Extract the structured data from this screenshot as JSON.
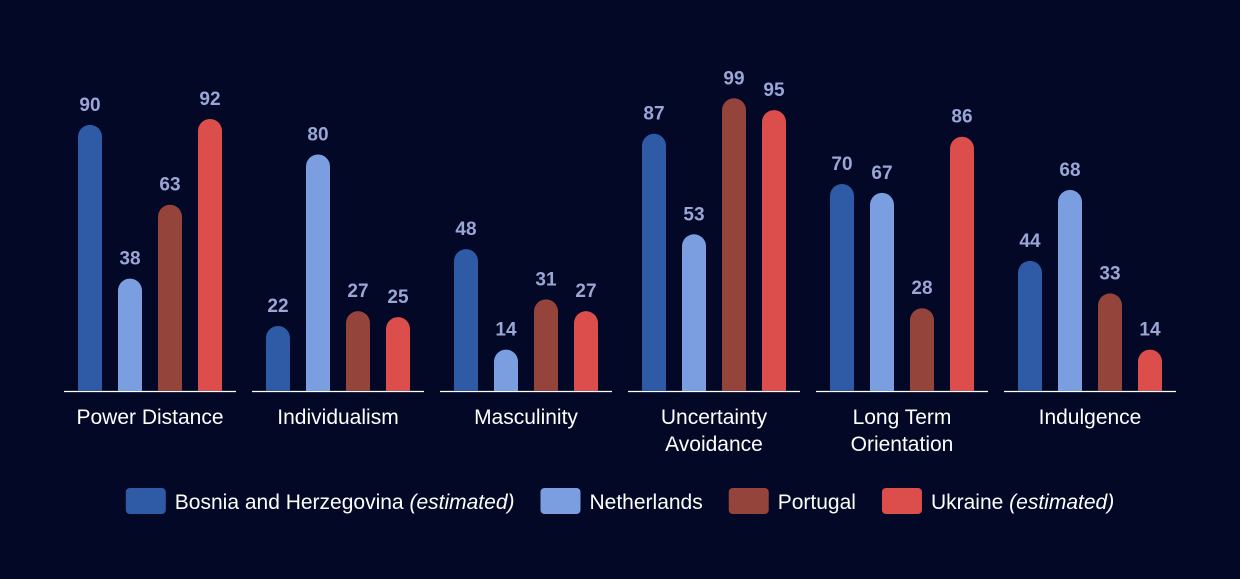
{
  "chart_data": {
    "type": "bar",
    "categories": [
      [
        "Power Distance"
      ],
      [
        "Individualism"
      ],
      [
        "Masculinity"
      ],
      [
        "Uncertainty",
        "Avoidance"
      ],
      [
        "Long Term",
        "Orientation"
      ],
      [
        "Indulgence"
      ]
    ],
    "ylim": [
      0,
      100
    ],
    "grid": false,
    "legend_placement": "bottom",
    "series": [
      {
        "name": "Bosnia and Herzegovina",
        "note": "(estimated)",
        "color": "#2f5aa5",
        "values": [
          90,
          22,
          48,
          87,
          70,
          44
        ]
      },
      {
        "name": "Netherlands",
        "note": "",
        "color": "#7a9ee0",
        "values": [
          38,
          80,
          14,
          53,
          67,
          68
        ]
      },
      {
        "name": "Portugal",
        "note": "",
        "color": "#94443b",
        "values": [
          63,
          27,
          31,
          99,
          28,
          33
        ]
      },
      {
        "name": "Ukraine",
        "note": "(estimated)",
        "color": "#dc4e4b",
        "values": [
          92,
          25,
          27,
          95,
          86,
          14
        ]
      }
    ]
  }
}
